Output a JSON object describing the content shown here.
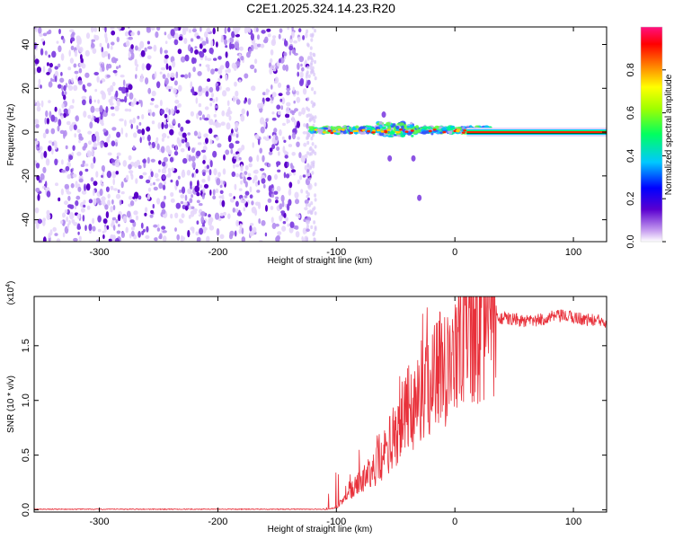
{
  "title": "C2E1.2025.324.14.23.R20",
  "chart_data": [
    {
      "type": "heatmap",
      "xlabel": "Height of straight line (km)",
      "ylabel": "Frequency (Hz)",
      "xlim": [
        -355,
        128
      ],
      "ylim": [
        -50,
        48
      ],
      "xticks": [
        -300,
        -200,
        -100,
        0,
        100
      ],
      "yticks": [
        -40,
        -20,
        0,
        20,
        40
      ],
      "noise_region_x": [
        -355,
        -122
      ],
      "tone_region_x": [
        10,
        128
      ],
      "tone_frequency": 0,
      "scatter_points": [
        [
          -30,
          -30
        ],
        [
          -35,
          -12
        ],
        [
          -55,
          -12
        ],
        [
          -60,
          8
        ]
      ],
      "colorbar": {
        "label": "Normalized spectral amplitude",
        "ticks": [
          0.0,
          0.2,
          0.4,
          0.6,
          0.8
        ],
        "tick_labels": [
          "0.0",
          "0.2",
          "0.4",
          "0.6",
          "0.8"
        ],
        "range": [
          0,
          1
        ]
      }
    },
    {
      "type": "line",
      "xlabel": "Height of straight line (km)",
      "ylabel": "SNR (10 * v/v)",
      "scale_label": "(x10",
      "scale_exp": "4",
      "xlim": [
        -355,
        128
      ],
      "ylim": [
        -0.02,
        1.95
      ],
      "xticks": [
        -300,
        -200,
        -100,
        0,
        100
      ],
      "yticks": [
        0.0,
        0.5,
        1.0,
        1.5
      ],
      "ytick_labels": [
        "0.0",
        "0.5",
        "1.0",
        "1.5"
      ],
      "color": "#e8303a",
      "envelope": [
        [
          -355,
          0.0
        ],
        [
          -110,
          0.0
        ],
        [
          -100,
          0.02
        ],
        [
          -90,
          0.15
        ],
        [
          -80,
          0.25
        ],
        [
          -70,
          0.35
        ],
        [
          -60,
          0.5
        ],
        [
          -50,
          0.7
        ],
        [
          -40,
          0.9
        ],
        [
          -30,
          1.05
        ],
        [
          -20,
          1.2
        ],
        [
          -10,
          1.35
        ],
        [
          0,
          1.45
        ],
        [
          10,
          1.55
        ],
        [
          20,
          1.65
        ],
        [
          30,
          1.72
        ],
        [
          40,
          1.75
        ],
        [
          50,
          1.74
        ],
        [
          60,
          1.72
        ],
        [
          70,
          1.73
        ],
        [
          80,
          1.76
        ],
        [
          90,
          1.77
        ],
        [
          100,
          1.76
        ],
        [
          110,
          1.74
        ],
        [
          128,
          1.72
        ]
      ]
    }
  ]
}
